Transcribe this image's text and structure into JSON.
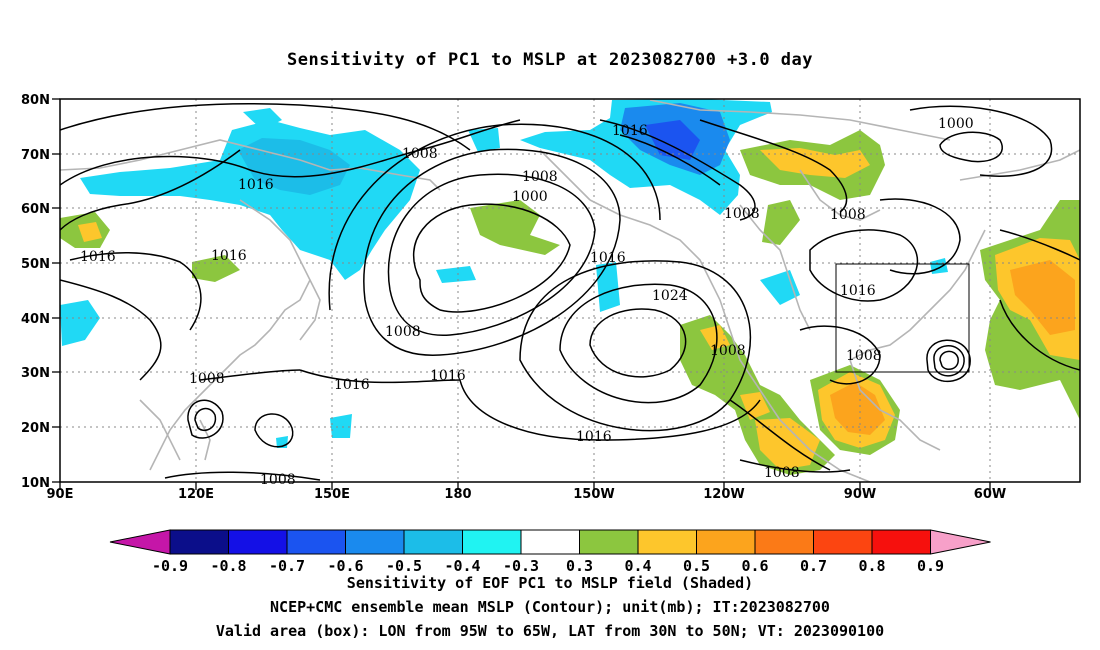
{
  "title": "Sensitivity of PC1 to MSLP at 2023082700 +3.0 day",
  "map": {
    "lat_labels": [
      "80N",
      "70N",
      "60N",
      "50N",
      "40N",
      "30N",
      "20N",
      "10N"
    ],
    "lon_labels": [
      "90E",
      "120E",
      "150E",
      "180",
      "150W",
      "120W",
      "90W",
      "60W"
    ],
    "box_label_valid_area": "Valid area box",
    "contour_labels": [
      {
        "text": "1016",
        "at": "70N 145W"
      },
      {
        "text": "1008",
        "at": "71N 174E"
      },
      {
        "text": "1000",
        "at": "72N 70W"
      },
      {
        "text": "1016",
        "at": "63N 138E"
      },
      {
        "text": "1008",
        "at": "64N 170W"
      },
      {
        "text": "1000",
        "at": "61N 165W"
      },
      {
        "text": "1008",
        "at": "60N 122W"
      },
      {
        "text": "1008",
        "at": "60N 102W"
      },
      {
        "text": "1016",
        "at": "51N 96E"
      },
      {
        "text": "1016",
        "at": "51N 125E"
      },
      {
        "text": "1016",
        "at": "51N 145W"
      },
      {
        "text": "1024",
        "at": "43N 138W"
      },
      {
        "text": "1016",
        "at": "43N 90W"
      },
      {
        "text": "1008",
        "at": "38N 169E"
      },
      {
        "text": "1008",
        "at": "34N 118W"
      },
      {
        "text": "1008",
        "at": "33N 91W"
      },
      {
        "text": "1008",
        "at": "31N 125E"
      },
      {
        "text": "1016",
        "at": "30N 155E"
      },
      {
        "text": "1016",
        "at": "30N 178W"
      },
      {
        "text": "1016",
        "at": "18N 150W"
      },
      {
        "text": "1008",
        "at": "11N 107W"
      },
      {
        "text": "1008",
        "at": "9N 140E"
      }
    ],
    "valid_box": {
      "lon_west": "95W",
      "lon_east": "65W",
      "lat_south": "30N",
      "lat_north": "50N"
    }
  },
  "colorbar": {
    "tick_labels": [
      "-0.9",
      "-0.8",
      "-0.7",
      "-0.6",
      "-0.5",
      "-0.4",
      "-0.3",
      "0.3",
      "0.4",
      "0.5",
      "0.6",
      "0.7",
      "0.8",
      "0.9"
    ],
    "colors": [
      "#0b0e8a",
      "#1410e6",
      "#1b54f0",
      "#1a8aee",
      "#1cbde8",
      "#20f3f2",
      "#ffffff",
      "#8cc63f",
      "#fdc62c",
      "#fca41d",
      "#fb7a17",
      "#fc4511",
      "#f6100d"
    ],
    "low_end_color": "#c516a8",
    "high_end_color": "#f7a0c9"
  },
  "captions": {
    "line1": "Sensitivity of EOF PC1 to MSLP field (Shaded)",
    "line2": "NCEP+CMC ensemble mean MSLP (Contour); unit(mb); IT:2023082700",
    "line3": "Valid area (box): LON from 95W to 65W, LAT from 30N to 50N; VT: 2023090100"
  },
  "colors": {
    "contour": "#000000",
    "coastline": "#b5b5b5",
    "gridline": "#888888",
    "negative_shade": "#20d9f5",
    "positive_green": "#8cc63f",
    "positive_yellow": "#fdc62c",
    "positive_orange": "#fca41d"
  }
}
